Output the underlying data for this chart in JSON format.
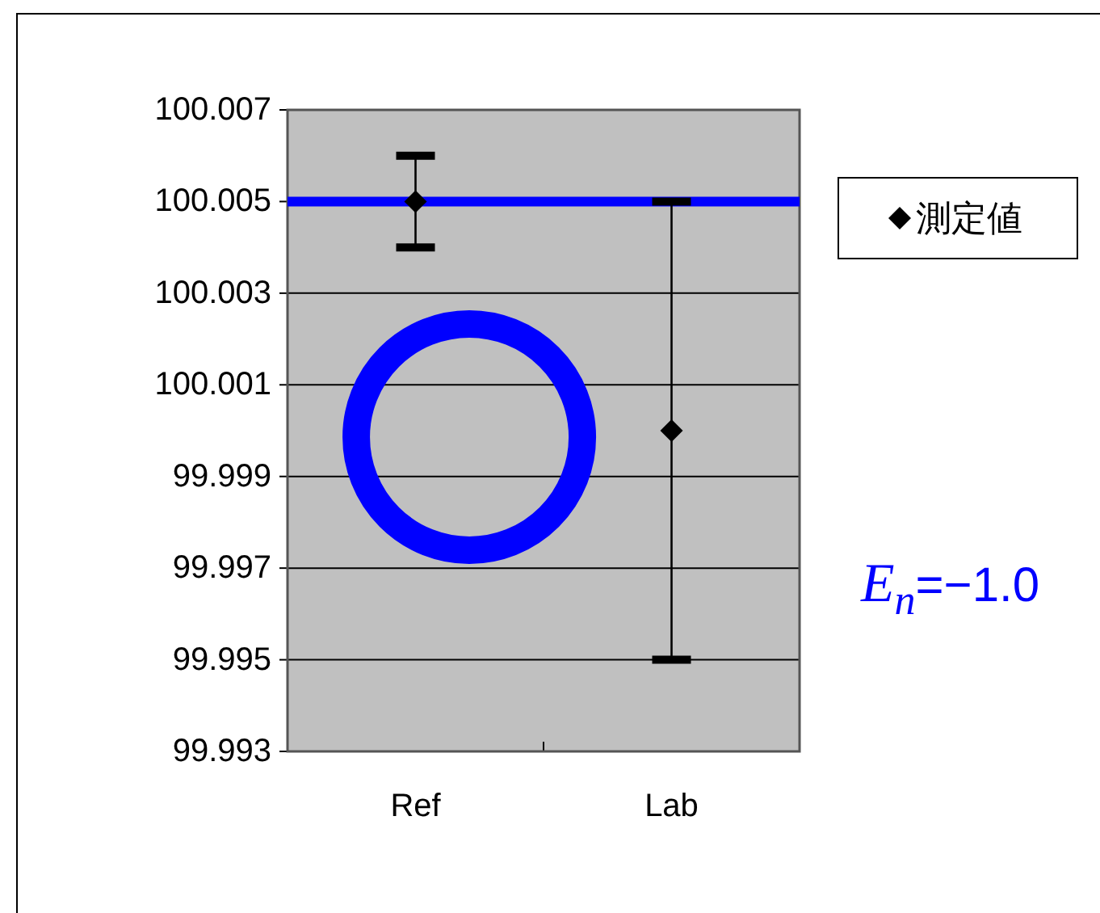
{
  "chart_data": {
    "type": "scatter",
    "categories": [
      "Ref",
      "Lab"
    ],
    "series": [
      {
        "name": "測定値",
        "color": "#000000",
        "values": [
          100.005,
          100.0
        ],
        "errors": [
          0.001,
          0.005
        ]
      }
    ],
    "ylim": [
      99.993,
      100.007
    ],
    "yticks": [
      99.993,
      99.995,
      99.997,
      99.999,
      100.001,
      100.003,
      100.005,
      100.007
    ],
    "grid": "y",
    "legend": "right",
    "marker": "diamond",
    "ref_lines": [
      {
        "axis": "y",
        "value": 100.005,
        "color": "#0000ff"
      }
    ],
    "annotations": [
      "*E*$_{n}$=−1.0"
    ]
  }
}
